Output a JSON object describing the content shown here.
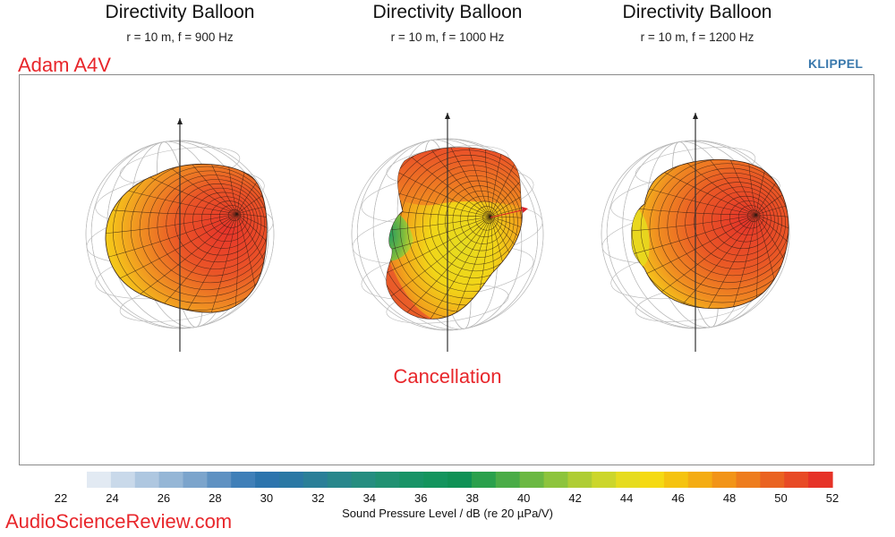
{
  "chart_data": {
    "type": "directivity-balloon",
    "panels": [
      {
        "title": "Directivity Balloon",
        "subtitle": "r = 10 m, f = 900 Hz"
      },
      {
        "title": "Directivity Balloon",
        "subtitle": "r = 10 m, f = 1000 Hz"
      },
      {
        "title": "Directivity Balloon",
        "subtitle": "r = 10 m, f = 1200 Hz"
      }
    ],
    "colorbar": {
      "label": "Sound Pressure Level / dB (re 20 µPa/V)",
      "min": 22,
      "max": 52,
      "ticks": [
        22,
        24,
        26,
        28,
        30,
        32,
        34,
        36,
        38,
        40,
        42,
        44,
        46,
        48,
        50,
        52
      ],
      "step_db": 1,
      "colors": [
        "#e2eaf3",
        "#c9d9ea",
        "#aec7e0",
        "#95b6d6",
        "#7ba4cc",
        "#5e91c2",
        "#3f7fb8",
        "#2c74ad",
        "#2a78a4",
        "#2a7f98",
        "#28878c",
        "#258d80",
        "#209172",
        "#189366",
        "#13945d",
        "#0f9155",
        "#2aa04c",
        "#4aac47",
        "#6bb842",
        "#8dc43c",
        "#afcd34",
        "#ccd62b",
        "#e6dc1f",
        "#f5da12",
        "#f5c30f",
        "#f4ac13",
        "#f29418",
        "#ee7c1d",
        "#ea6321",
        "#e84a25",
        "#e63227"
      ]
    },
    "annotations": [
      "Cancellation"
    ]
  },
  "header": {
    "brand": "Adam A4V",
    "vendor": "KLIPPEL"
  },
  "footer": {
    "site": "AudioScienceReview.com"
  }
}
